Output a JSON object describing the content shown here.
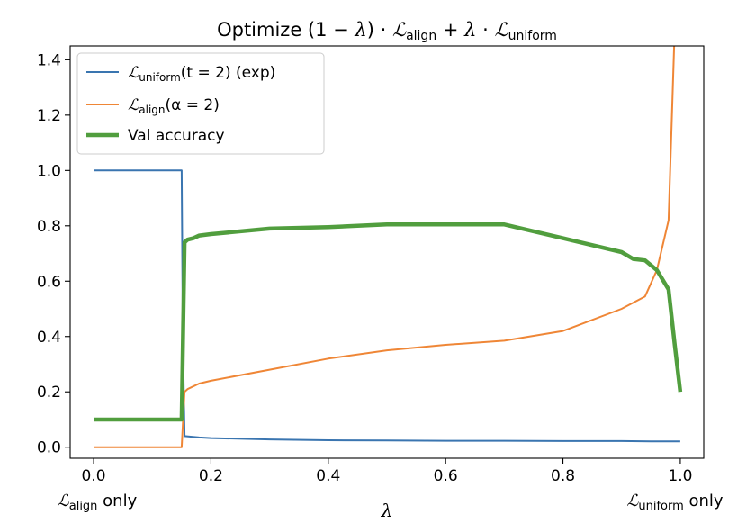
{
  "chart_data": {
    "type": "line",
    "title": {
      "prefix": "Optimize (1 − ",
      "lambda": "λ",
      "mid1": ") · ",
      "script_L": "ℒ",
      "sub_align": "align",
      "mid2": " + ",
      "mid3": " · ",
      "sub_uniform": "uniform"
    },
    "xlabel": "λ",
    "xlim": [
      -0.04,
      1.04
    ],
    "ylim": [
      -0.04,
      1.45
    ],
    "xticks": [
      "0.0",
      "0.2",
      "0.4",
      "0.6",
      "0.8",
      "1.0"
    ],
    "yticks": [
      "0.0",
      "0.2",
      "0.4",
      "0.6",
      "0.8",
      "1.0",
      "1.2",
      "1.4"
    ],
    "x_annotations": {
      "left": {
        "L": "ℒ",
        "sub": "align",
        "suffix": " only"
      },
      "right": {
        "L": "ℒ",
        "sub": "uniform",
        "suffix": " only"
      }
    },
    "legend_position": "upper left",
    "series": [
      {
        "legend": {
          "L": "ℒ",
          "sub": "uniform",
          "arg": "(t = 2) (exp)"
        },
        "color": "#3a75b0",
        "line_width": "normal",
        "x": [
          0.0,
          0.15,
          0.152,
          0.155,
          0.18,
          0.2,
          0.3,
          0.4,
          0.5,
          0.6,
          0.7,
          0.8,
          0.9,
          0.95,
          1.0
        ],
        "y": [
          1.0,
          1.0,
          0.4,
          0.04,
          0.035,
          0.033,
          0.028,
          0.025,
          0.024,
          0.023,
          0.023,
          0.022,
          0.022,
          0.021,
          0.021
        ]
      },
      {
        "legend": {
          "L": "ℒ",
          "sub": "align",
          "arg": "(α = 2)"
        },
        "color": "#ef8636",
        "line_width": "normal",
        "x": [
          0.0,
          0.15,
          0.155,
          0.16,
          0.18,
          0.2,
          0.3,
          0.4,
          0.5,
          0.6,
          0.7,
          0.8,
          0.9,
          0.94,
          0.96,
          0.98,
          0.99,
          1.0
        ],
        "y": [
          0.0,
          0.0,
          0.2,
          0.21,
          0.23,
          0.24,
          0.28,
          0.32,
          0.35,
          0.37,
          0.385,
          0.42,
          0.5,
          0.545,
          0.64,
          0.82,
          1.48,
          1.8
        ]
      },
      {
        "legend": {
          "text": "Val accuracy"
        },
        "color": "#519e3e",
        "line_width": "thick",
        "x": [
          0.0,
          0.15,
          0.155,
          0.16,
          0.17,
          0.18,
          0.2,
          0.3,
          0.4,
          0.5,
          0.6,
          0.7,
          0.8,
          0.9,
          0.92,
          0.94,
          0.96,
          0.98,
          0.99,
          1.0
        ],
        "y": [
          0.1,
          0.1,
          0.74,
          0.75,
          0.755,
          0.765,
          0.77,
          0.79,
          0.795,
          0.805,
          0.805,
          0.805,
          0.755,
          0.705,
          0.68,
          0.675,
          0.64,
          0.57,
          0.38,
          0.2
        ]
      }
    ]
  }
}
